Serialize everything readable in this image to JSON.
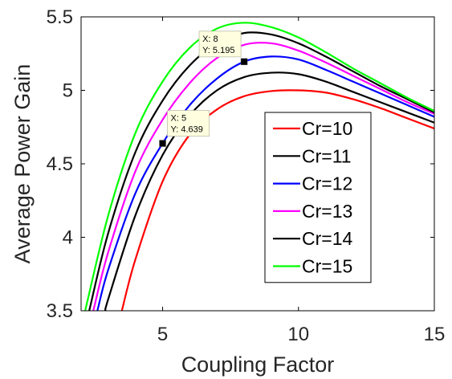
{
  "chart_data": {
    "type": "line",
    "xlabel": "Coupling Factor",
    "ylabel": "Average Power Gain",
    "xlim": [
      2,
      15
    ],
    "ylim": [
      3.5,
      5.5
    ],
    "xticks": [
      5,
      10,
      15
    ],
    "yticks": [
      3.5,
      4,
      4.5,
      5,
      5.5
    ],
    "xtick_labels": [
      "5",
      "10",
      "15"
    ],
    "ytick_labels": [
      "3.5",
      "4",
      "4.5",
      "5",
      "5.5"
    ],
    "grid": false,
    "legend_position": "center-right",
    "series": [
      {
        "name": "Cr=10",
        "color": "#ff0000",
        "x": [
          3.5,
          4,
          5,
          6,
          7,
          8,
          9,
          10,
          11,
          12,
          13,
          14,
          15
        ],
        "y": [
          3.5,
          3.85,
          4.38,
          4.7,
          4.87,
          4.96,
          4.995,
          5.0,
          4.985,
          4.94,
          4.88,
          4.81,
          4.74
        ]
      },
      {
        "name": "Cr=11",
        "color": "#000000",
        "x": [
          2.9,
          3,
          4,
          5,
          6,
          7,
          8,
          9,
          10,
          11,
          12,
          13,
          14,
          15
        ],
        "y": [
          3.5,
          3.58,
          4.15,
          4.56,
          4.83,
          5.0,
          5.09,
          5.12,
          5.11,
          5.06,
          4.99,
          4.92,
          4.85,
          4.78
        ]
      },
      {
        "name": "Cr=12",
        "color": "#0000ff",
        "x": [
          2.6,
          3,
          4,
          5,
          6,
          7,
          8,
          9,
          10,
          11,
          12,
          13,
          14,
          15
        ],
        "y": [
          3.5,
          3.78,
          4.3,
          4.639,
          4.9,
          5.08,
          5.195,
          5.23,
          5.21,
          5.14,
          5.06,
          4.98,
          4.9,
          4.82
        ]
      },
      {
        "name": "Cr=13",
        "color": "#ff00ff",
        "x": [
          2.45,
          3,
          4,
          5,
          6,
          7,
          8,
          9,
          10,
          11,
          12,
          13,
          14,
          15
        ],
        "y": [
          3.5,
          3.9,
          4.45,
          4.8,
          5.05,
          5.22,
          5.31,
          5.32,
          5.27,
          5.19,
          5.1,
          5.01,
          4.92,
          4.84
        ]
      },
      {
        "name": "Cr=14",
        "color": "#000000",
        "x": [
          2.3,
          3,
          4,
          5,
          6,
          7,
          8,
          9,
          10,
          11,
          12,
          13,
          14,
          15
        ],
        "y": [
          3.5,
          4.03,
          4.58,
          4.93,
          5.17,
          5.32,
          5.39,
          5.38,
          5.32,
          5.23,
          5.13,
          5.03,
          4.94,
          4.85
        ]
      },
      {
        "name": "Cr=15",
        "color": "#00ff00",
        "x": [
          2.15,
          3,
          4,
          5,
          6,
          7,
          8,
          9,
          10,
          11,
          12,
          13,
          14,
          15
        ],
        "y": [
          3.5,
          4.15,
          4.71,
          5.06,
          5.29,
          5.42,
          5.46,
          5.43,
          5.36,
          5.26,
          5.15,
          5.05,
          4.95,
          4.86
        ]
      }
    ],
    "datatips": [
      {
        "x": 8,
        "y": 5.195,
        "label_x": "X: 8",
        "label_y": "Y: 5.195"
      },
      {
        "x": 5,
        "y": 4.639,
        "label_x": "X: 5",
        "label_y": "Y: 4.639"
      }
    ]
  }
}
